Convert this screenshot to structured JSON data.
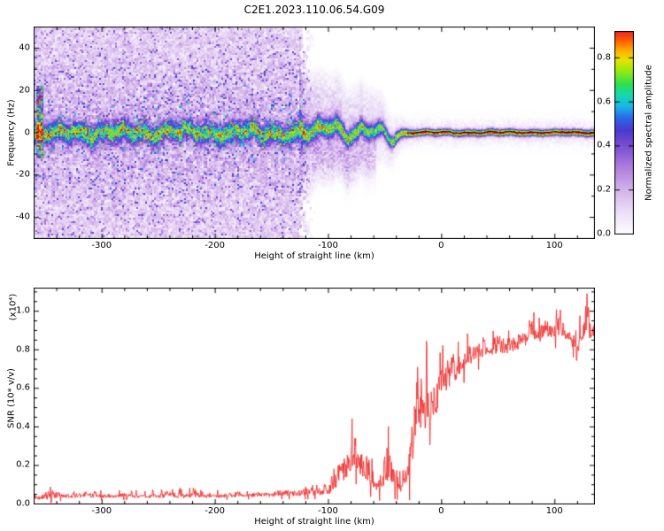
{
  "title": "C2E1.2023.110.06.54.G09",
  "chart_data": [
    {
      "type": "heatmap",
      "title": "C2E1.2023.110.06.54.G09",
      "xlabel": "Height of straight line (km)",
      "ylabel": "Frequency (Hz)",
      "xlim": [
        -360,
        135
      ],
      "ylim": [
        -50,
        50
      ],
      "xtick_values": [
        -300,
        -200,
        -100,
        0,
        100
      ],
      "ytick_values": [
        -40,
        -20,
        0,
        20,
        40
      ],
      "x_minor_step": 20,
      "y_minor_step": 10,
      "grid": false,
      "colorbar": {
        "label": "Normalized spectral amplitude",
        "tick_labels": [
          "0.0",
          "0.2",
          "0.4",
          "0.6",
          "0.8"
        ],
        "tick_values": [
          0,
          0.2,
          0.4,
          0.6,
          0.8
        ],
        "vmax": 0.92
      },
      "colormap_stops": [
        [
          0.0,
          "#ffffff"
        ],
        [
          0.1,
          "#ecdff6"
        ],
        [
          0.2,
          "#d4b4ec"
        ],
        [
          0.3,
          "#b07fdd"
        ],
        [
          0.4,
          "#7b4fd2"
        ],
        [
          0.47,
          "#4b3ad0"
        ],
        [
          0.53,
          "#2e6ae8"
        ],
        [
          0.58,
          "#19b8e8"
        ],
        [
          0.63,
          "#16d8b0"
        ],
        [
          0.68,
          "#2ee04e"
        ],
        [
          0.74,
          "#97e814"
        ],
        [
          0.79,
          "#e8e400"
        ],
        [
          0.83,
          "#ffb400"
        ],
        [
          0.88,
          "#ff5a00"
        ],
        [
          0.93,
          "#f01830"
        ],
        [
          1.0,
          "#d8102a"
        ]
      ],
      "model": {
        "seed": 20231106,
        "band_profile": [
          [
            -360,
            0.52,
            4.5,
            0.17,
            50
          ],
          [
            -130,
            0.52,
            4.5,
            0.17,
            50
          ],
          [
            -122,
            0.55,
            4.5,
            0.14,
            34
          ],
          [
            -110,
            0.6,
            4.5,
            0.14,
            30
          ],
          [
            -95,
            0.62,
            4.2,
            0.13,
            28
          ],
          [
            -80,
            0.62,
            4.0,
            0.12,
            26
          ],
          [
            -65,
            0.6,
            3.8,
            0.11,
            24
          ],
          [
            -55,
            0.58,
            3.6,
            0.1,
            20
          ],
          [
            -45,
            0.62,
            3.0,
            0.07,
            15
          ],
          [
            -38,
            0.7,
            2.4,
            0.05,
            11
          ],
          [
            -30,
            0.85,
            1.8,
            0.03,
            8
          ],
          [
            -24,
            0.92,
            1.5,
            0.02,
            7
          ],
          [
            135,
            0.9,
            1.5,
            0.02,
            7
          ]
        ],
        "wiggle_profile": [
          [
            -360,
            2.0
          ],
          [
            -130,
            2.2
          ],
          [
            -110,
            3.0
          ],
          [
            -90,
            3.2
          ],
          [
            -70,
            2.8
          ],
          [
            -50,
            2.2
          ],
          [
            -38,
            1.2
          ],
          [
            -28,
            0.5
          ],
          [
            135,
            0.35
          ]
        ],
        "bumps": [
          {
            "center": -96,
            "amp": 4.5,
            "sigma": 8
          },
          {
            "center": -44,
            "amp": -3.0,
            "sigma": 5
          }
        ],
        "red_segments": [
          [
            -27,
            -13
          ],
          [
            -8,
            5
          ],
          [
            20,
            27
          ],
          [
            40,
            55
          ],
          [
            63,
            71
          ],
          [
            77,
            96
          ],
          [
            104,
            113
          ],
          [
            118,
            134
          ]
        ],
        "black_line_start_km": -30,
        "noise_field": {
          "full_until_km": -128,
          "fade_until_km": -112
        },
        "artifact": {
          "h0": -358,
          "h1": -352,
          "f0": -12,
          "f1": 22,
          "amp": 0.42
        }
      }
    },
    {
      "type": "line",
      "xlabel": "Height of straight line (km)",
      "ylabel": "SNR (10* v/v)",
      "scale_label": "(x10⁴)",
      "xlim": [
        -360,
        135
      ],
      "ylim": [
        0,
        1.12
      ],
      "xtick_values": [
        -300,
        -200,
        -100,
        0,
        100
      ],
      "ytick_values": [
        0,
        0.2,
        0.4,
        0.6,
        0.8,
        1.0
      ],
      "ytick_labels": [
        "0.0",
        "0.2",
        "0.4",
        "0.6",
        "0.8",
        "1.0"
      ],
      "x_minor_step": 20,
      "y_minor_step": 0.05,
      "line_color": "#ee3232",
      "seed": 777,
      "profile": [
        [
          -360,
          0.035,
          0.02
        ],
        [
          -348,
          0.05,
          0.06
        ],
        [
          -340,
          0.04,
          0.025
        ],
        [
          -300,
          0.04,
          0.02
        ],
        [
          -260,
          0.04,
          0.02
        ],
        [
          -230,
          0.045,
          0.03
        ],
        [
          -200,
          0.04,
          0.02
        ],
        [
          -160,
          0.045,
          0.02
        ],
        [
          -130,
          0.05,
          0.025
        ],
        [
          -110,
          0.055,
          0.03
        ],
        [
          -100,
          0.07,
          0.05
        ],
        [
          -92,
          0.16,
          0.14
        ],
        [
          -84,
          0.22,
          0.16
        ],
        [
          -76,
          0.26,
          0.14
        ],
        [
          -70,
          0.22,
          0.14
        ],
        [
          -64,
          0.15,
          0.1
        ],
        [
          -58,
          0.09,
          0.06
        ],
        [
          -52,
          0.12,
          0.1
        ],
        [
          -46,
          0.22,
          0.18
        ],
        [
          -42,
          0.18,
          0.14
        ],
        [
          -36,
          0.08,
          0.06
        ],
        [
          -30,
          0.12,
          0.1
        ],
        [
          -26,
          0.3,
          0.25
        ],
        [
          -22,
          0.45,
          0.3
        ],
        [
          -18,
          0.5,
          0.28
        ],
        [
          -12,
          0.52,
          0.22
        ],
        [
          -6,
          0.55,
          0.18
        ],
        [
          0,
          0.6,
          0.15
        ],
        [
          8,
          0.66,
          0.12
        ],
        [
          16,
          0.71,
          0.1
        ],
        [
          24,
          0.75,
          0.09
        ],
        [
          32,
          0.78,
          0.08
        ],
        [
          42,
          0.8,
          0.07
        ],
        [
          52,
          0.8,
          0.07
        ],
        [
          62,
          0.82,
          0.07
        ],
        [
          72,
          0.85,
          0.08
        ],
        [
          80,
          0.9,
          0.09
        ],
        [
          86,
          0.87,
          0.08
        ],
        [
          92,
          0.93,
          0.1
        ],
        [
          98,
          0.89,
          0.09
        ],
        [
          104,
          0.92,
          0.09
        ],
        [
          110,
          0.88,
          0.08
        ],
        [
          116,
          0.86,
          0.09
        ],
        [
          122,
          0.84,
          0.1
        ],
        [
          128,
          0.93,
          0.11
        ],
        [
          135,
          0.9,
          0.1
        ]
      ]
    }
  ]
}
